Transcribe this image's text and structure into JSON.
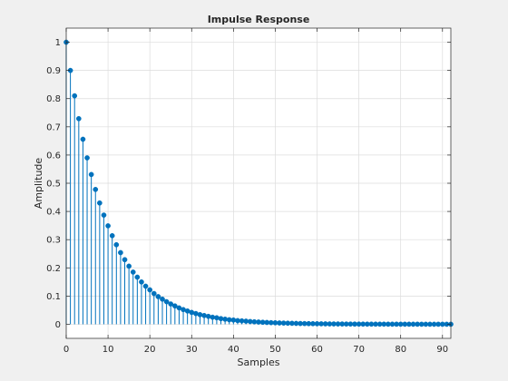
{
  "chart_data": {
    "type": "stem",
    "title": "Impulse Response",
    "xlabel": "Samples",
    "ylabel": "Amplitude",
    "xlim": [
      0,
      92
    ],
    "ylim": [
      -0.05,
      1.05
    ],
    "xticks": [
      0,
      10,
      20,
      30,
      40,
      50,
      60,
      70,
      80,
      90
    ],
    "yticks": [
      0,
      0.1,
      0.2,
      0.3,
      0.4,
      0.5,
      0.6,
      0.7,
      0.8,
      0.9,
      1
    ],
    "ytick_labels": [
      "0",
      "0.1",
      "0.2",
      "0.3",
      "0.4",
      "0.5",
      "0.6",
      "0.7",
      "0.8",
      "0.9",
      "1"
    ],
    "grid": true,
    "color": "#0072bd",
    "x": [
      0,
      1,
      2,
      3,
      4,
      5,
      6,
      7,
      8,
      9,
      10,
      11,
      12,
      13,
      14,
      15,
      16,
      17,
      18,
      19,
      20,
      21,
      22,
      23,
      24,
      25,
      26,
      27,
      28,
      29,
      30,
      31,
      32,
      33,
      34,
      35,
      36,
      37,
      38,
      39,
      40,
      41,
      42,
      43,
      44,
      45,
      46,
      47,
      48,
      49,
      50,
      51,
      52,
      53,
      54,
      55,
      56,
      57,
      58,
      59,
      60,
      61,
      62,
      63,
      64,
      65,
      66,
      67,
      68,
      69,
      70,
      71,
      72,
      73,
      74,
      75,
      76,
      77,
      78,
      79,
      80,
      81,
      82,
      83,
      84,
      85,
      86,
      87,
      88,
      89,
      90,
      91,
      92
    ],
    "values": [
      1,
      0.9,
      0.81,
      0.729,
      0.656,
      0.59,
      0.531,
      0.478,
      0.43,
      0.387,
      0.349,
      0.314,
      0.282,
      0.254,
      0.229,
      0.206,
      0.185,
      0.167,
      0.15,
      0.135,
      0.122,
      0.109,
      0.098,
      0.089,
      0.08,
      0.072,
      0.065,
      0.058,
      0.052,
      0.047,
      0.042,
      0.038,
      0.034,
      0.031,
      0.028,
      0.025,
      0.023,
      0.02,
      0.018,
      0.016,
      0.015,
      0.013,
      0.012,
      0.011,
      0.0097,
      0.0087,
      0.0079,
      0.0071,
      0.0064,
      0.0057,
      0.0052,
      0.0046,
      0.0042,
      0.0038,
      0.0034,
      0.0031,
      0.0027,
      0.0025,
      0.0022,
      0.002,
      0.0018,
      0.0016,
      0.0015,
      0.0013,
      0.0012,
      0.0011,
      0.001,
      0.0009,
      0.0008,
      0.0007,
      0.0006,
      0.0006,
      0.0005,
      0.0005,
      0.0004,
      0.0004,
      0.0004,
      0.0003,
      0.0003,
      0.0003,
      0.0002,
      0.0002,
      0.0002,
      0.0002,
      0.0002,
      0.0001,
      0.0001,
      0.0001,
      0.0001,
      0.0001,
      0.0001,
      0.0001,
      0.0001
    ]
  }
}
